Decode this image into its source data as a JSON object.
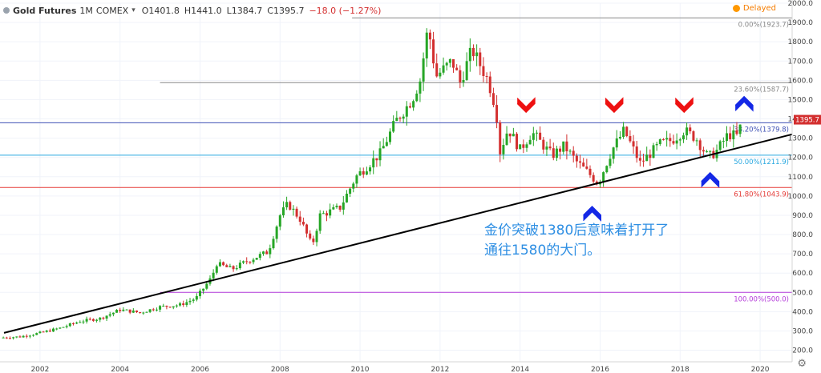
{
  "header": {
    "symbol": "Gold Futures",
    "interval": "1M",
    "exchange": "COMEX",
    "open": "O1401.8",
    "high": "H1441.0",
    "low": "L1384.7",
    "close": "C1395.7",
    "change": "−18.0 (−1.27%)",
    "status": "Delayed"
  },
  "annotation_lines": [
    "金价突破1380后意味着打开了",
    "通往1580的大门。"
  ],
  "colors": {
    "up": "#26a626",
    "down": "#d32f2f",
    "trendline": "#000000",
    "arrow_red": "#ee1111",
    "arrow_blue": "#1428e6",
    "annotation": "#2f8fe3"
  },
  "chart_data": {
    "type": "candlestick",
    "x_range": [
      2001.0,
      2020.8
    ],
    "ylim": [
      140,
      2000
    ],
    "x_ticks": [
      2002,
      2004,
      2006,
      2008,
      2010,
      2012,
      2014,
      2016,
      2018,
      2020
    ],
    "y_ticks": [
      200,
      300,
      400,
      500,
      600,
      700,
      800,
      900,
      1000,
      1100,
      1200,
      1300,
      1400,
      1500,
      1600,
      1700,
      1800,
      1900,
      2000
    ],
    "last_price": "1395.7",
    "fib_levels": [
      {
        "label": "0.00%(1923.7)",
        "value": 1923.7,
        "color": "#888888",
        "start": 2009.8
      },
      {
        "label": "23.60%(1587.7)",
        "value": 1587.7,
        "color": "#888888",
        "start": 2005.0
      },
      {
        "label": "38.20%(1379.8)",
        "value": 1379.8,
        "color": "#3f51b5",
        "start": 2001.0
      },
      {
        "label": "50.00%(1211.9)",
        "value": 1211.9,
        "color": "#29a8e0",
        "start": 2001.0
      },
      {
        "label": "61.80%(1043.9)",
        "value": 1043.9,
        "color": "#e53935",
        "start": 2001.0
      },
      {
        "label": "100.00%(500.0)",
        "value": 500.0,
        "color": "#b43bd9",
        "start": 2005.0
      }
    ],
    "trendline": {
      "start": [
        2001.1,
        290
      ],
      "end": [
        2020.8,
        1320
      ]
    },
    "arrows": [
      {
        "color": "red",
        "direction": "down",
        "x": 2014.15,
        "y": 1450
      },
      {
        "color": "red",
        "direction": "down",
        "x": 2016.35,
        "y": 1450
      },
      {
        "color": "red",
        "direction": "down",
        "x": 2018.1,
        "y": 1450
      },
      {
        "color": "blue",
        "direction": "up",
        "x": 2019.6,
        "y": 1500
      },
      {
        "color": "blue",
        "direction": "up",
        "x": 2018.75,
        "y": 1105
      },
      {
        "color": "blue",
        "direction": "up",
        "x": 2015.8,
        "y": 930
      }
    ],
    "anchors": [
      [
        2001.0,
        265
      ],
      [
        2001.5,
        270
      ],
      [
        2002.0,
        290
      ],
      [
        2002.5,
        315
      ],
      [
        2003.0,
        350
      ],
      [
        2003.5,
        365
      ],
      [
        2004.0,
        410
      ],
      [
        2004.5,
        395
      ],
      [
        2005.0,
        425
      ],
      [
        2005.5,
        435
      ],
      [
        2005.9,
        470
      ],
      [
        2006.3,
        580
      ],
      [
        2006.4,
        650
      ],
      [
        2006.8,
        620
      ],
      [
        2007.2,
        665
      ],
      [
        2007.7,
        710
      ],
      [
        2008.0,
        900
      ],
      [
        2008.2,
        960
      ],
      [
        2008.5,
        880
      ],
      [
        2008.8,
        740
      ],
      [
        2009.0,
        900
      ],
      [
        2009.5,
        940
      ],
      [
        2009.9,
        1100
      ],
      [
        2010.5,
        1220
      ],
      [
        2010.9,
        1390
      ],
      [
        2011.3,
        1500
      ],
      [
        2011.5,
        1600
      ],
      [
        2011.7,
        1880
      ],
      [
        2011.9,
        1620
      ],
      [
        2012.3,
        1700
      ],
      [
        2012.5,
        1590
      ],
      [
        2012.8,
        1760
      ],
      [
        2013.2,
        1600
      ],
      [
        2013.4,
        1450
      ],
      [
        2013.5,
        1230
      ],
      [
        2013.7,
        1350
      ],
      [
        2014.0,
        1240
      ],
      [
        2014.3,
        1330
      ],
      [
        2014.8,
        1210
      ],
      [
        2015.1,
        1260
      ],
      [
        2015.4,
        1180
      ],
      [
        2015.8,
        1100
      ],
      [
        2015.95,
        1065
      ],
      [
        2016.3,
        1240
      ],
      [
        2016.6,
        1340
      ],
      [
        2017.0,
        1170
      ],
      [
        2017.5,
        1270
      ],
      [
        2017.8,
        1290
      ],
      [
        2018.1,
        1340
      ],
      [
        2018.4,
        1300
      ],
      [
        2018.7,
        1200
      ],
      [
        2018.9,
        1230
      ],
      [
        2019.2,
        1320
      ],
      [
        2019.45,
        1310
      ],
      [
        2019.55,
        1400
      ]
    ]
  }
}
